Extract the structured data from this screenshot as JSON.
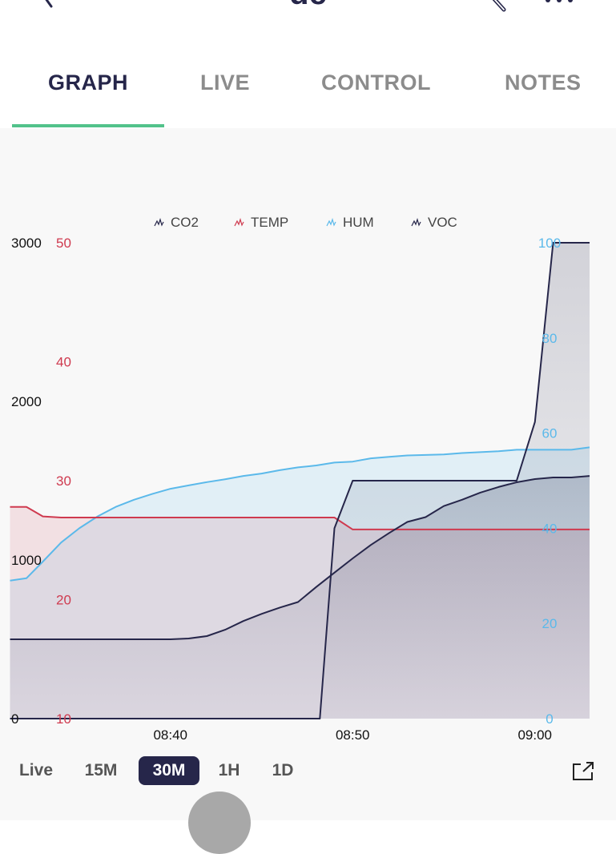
{
  "header": {
    "title": "de"
  },
  "tabs": [
    {
      "label": "GRAPH",
      "active": true
    },
    {
      "label": "LIVE",
      "active": false
    },
    {
      "label": "CONTROL",
      "active": false
    },
    {
      "label": "NOTES",
      "active": false
    }
  ],
  "ranges": [
    {
      "label": "Live",
      "active": false
    },
    {
      "label": "15M",
      "active": false
    },
    {
      "label": "30M",
      "active": true
    },
    {
      "label": "1H",
      "active": false
    },
    {
      "label": "1D",
      "active": false
    }
  ],
  "colors": {
    "accent": "#52c28b",
    "dark": "#26264a"
  },
  "icons": {
    "back": "back-icon",
    "edit": "edit-icon",
    "more": "more-icon",
    "expand": "expand-icon",
    "legend": "line-chart-icon"
  },
  "chart_data": {
    "type": "line",
    "title": "",
    "legend": {
      "placement": "top",
      "items": [
        {
          "name": "CO2",
          "color": "#26264a"
        },
        {
          "name": "TEMP",
          "color": "#cf3a4f"
        },
        {
          "name": "HUM",
          "color": "#5bb9ea"
        },
        {
          "name": "VOC",
          "color": "#26264a"
        }
      ]
    },
    "x_ticks": [
      {
        "label": "08:40",
        "value": 40
      },
      {
        "label": "08:50",
        "value": 50
      },
      {
        "label": "09:00",
        "value": 60
      }
    ],
    "x_range": [
      31,
      63
    ],
    "axes": {
      "co2": {
        "range": [
          0,
          3000
        ],
        "ticks": [
          "0",
          "1000",
          "2000",
          "3000"
        ],
        "tick_values": [
          0,
          1000,
          2000,
          3000
        ],
        "color": "#111111"
      },
      "temp": {
        "range": [
          10,
          50
        ],
        "ticks": [
          "10",
          "20",
          "30",
          "40",
          "50"
        ],
        "tick_values": [
          10,
          20,
          30,
          40,
          50
        ],
        "color": "#cf3a4f"
      },
      "hum": {
        "range": [
          0,
          100
        ],
        "ticks": [
          "0",
          "20",
          "40",
          "60",
          "80",
          "100"
        ],
        "tick_values": [
          0,
          20,
          40,
          60,
          80,
          100
        ],
        "color": "#5bb9ea"
      }
    },
    "series": [
      {
        "name": "HUM",
        "axis": "hum",
        "color": "#5bb9ea",
        "fill": "#5bb9ea",
        "fill_opacity": 0.15,
        "x": [
          31.2,
          32.1,
          33,
          34,
          35,
          36,
          37,
          38,
          39,
          40,
          41,
          42,
          43,
          44,
          45,
          46,
          47,
          48,
          49,
          50,
          51,
          52,
          53,
          54,
          55,
          56,
          57,
          58,
          59,
          60,
          61,
          62,
          63
        ],
        "y": [
          29,
          29.5,
          33,
          37,
          40,
          42.5,
          44.5,
          46,
          47.2,
          48.3,
          49,
          49.7,
          50.3,
          51,
          51.5,
          52.2,
          52.8,
          53.2,
          53.8,
          54,
          54.7,
          55,
          55.3,
          55.4,
          55.5,
          55.8,
          56,
          56.2,
          56.5,
          56.5,
          56.5,
          56.5,
          57
        ]
      },
      {
        "name": "TEMP",
        "axis": "temp",
        "color": "#cf3a4f",
        "fill": "#cf3a4f",
        "fill_opacity": 0.12,
        "x": [
          31.2,
          32.1,
          33,
          34,
          35,
          36,
          37,
          38,
          39,
          40,
          41,
          42,
          43,
          44,
          45,
          46,
          47,
          48,
          49,
          50,
          51,
          52,
          53,
          54,
          55,
          56,
          57,
          58,
          59,
          60,
          61,
          62,
          63
        ],
        "y": [
          27.8,
          27.8,
          27,
          26.9,
          26.9,
          26.9,
          26.9,
          26.9,
          26.9,
          26.9,
          26.9,
          26.9,
          26.9,
          26.9,
          26.9,
          26.9,
          26.9,
          26.9,
          26.9,
          25.9,
          25.9,
          25.9,
          25.9,
          25.9,
          25.9,
          25.9,
          25.9,
          25.9,
          25.9,
          25.9,
          25.9,
          25.9,
          25.9
        ]
      },
      {
        "name": "VOC",
        "axis": "co2",
        "color": "#26264a",
        "fill": "#26264a",
        "fill_opacity": 0.14,
        "x": [
          31.2,
          33,
          35,
          37,
          38,
          39,
          40,
          41,
          42,
          43,
          44,
          45,
          46,
          47,
          48,
          49,
          50,
          51,
          52,
          53,
          54,
          55,
          56,
          57,
          58,
          59,
          60,
          61,
          62,
          63
        ],
        "y": [
          500,
          500,
          500,
          500,
          500,
          500,
          500,
          505,
          520,
          560,
          615,
          660,
          700,
          735,
          830,
          920,
          1010,
          1095,
          1170,
          1240,
          1270,
          1340,
          1380,
          1425,
          1460,
          1490,
          1510,
          1520,
          1520,
          1530
        ]
      },
      {
        "name": "CO2",
        "axis": "co2",
        "color": "#26264a",
        "fill": "#26264a",
        "fill_opacity": 0.12,
        "x": [
          31.2,
          33,
          35,
          37,
          39,
          41,
          43,
          45,
          47,
          48,
          48.2,
          49.0,
          50,
          52,
          54,
          56,
          58,
          59,
          60,
          61,
          62,
          63
        ],
        "y": [
          0,
          0,
          0,
          0,
          0,
          0,
          0,
          0,
          0,
          0,
          0,
          1200,
          1500,
          1500,
          1500,
          1500,
          1500,
          1500,
          1870,
          3000,
          3000,
          3000
        ]
      }
    ]
  }
}
